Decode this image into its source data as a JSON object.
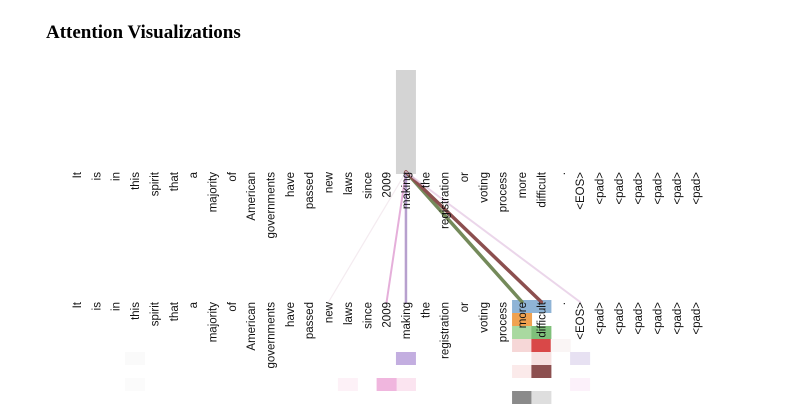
{
  "figure": {
    "title": "Attention Visualizations"
  },
  "tokens": [
    "It",
    "is",
    "in",
    "this",
    "spirit",
    "that",
    "a",
    "majority",
    "of",
    "American",
    "governments",
    "have",
    "passed",
    "new",
    "laws",
    "since",
    "2009",
    "making",
    "the",
    "registration",
    "or",
    "voting",
    "process",
    "more",
    "difficult",
    ".",
    "<EOS>",
    "<pad>",
    "<pad>",
    "<pad>",
    "<pad>",
    "<pad>",
    "<pad>"
  ],
  "query": {
    "index": 17,
    "token": "making",
    "highlight_color": "#d4d4d4"
  },
  "attention_links": [
    {
      "to": 13,
      "color": "#ead7e2",
      "opacity": 0.5,
      "width": 1.2
    },
    {
      "to": 16,
      "color": "#e2a6d6",
      "opacity": 0.9,
      "width": 2
    },
    {
      "to": 17,
      "color": "#b39bcb",
      "opacity": 0.95,
      "width": 2.5
    },
    {
      "to": 23,
      "color": "#748a5a",
      "opacity": 1.0,
      "width": 3.5
    },
    {
      "to": 24,
      "color": "#8c4f4f",
      "opacity": 1.0,
      "width": 3.5
    },
    {
      "to": 26,
      "color": "#e7cfe6",
      "opacity": 0.85,
      "width": 2
    }
  ],
  "head_blocks": [
    {
      "col": 23,
      "row": 0,
      "color": "#8fb4d6"
    },
    {
      "col": 23,
      "row": 1,
      "color": "#f0a250"
    },
    {
      "col": 23,
      "row": 2,
      "color": "#a9d9a0"
    },
    {
      "col": 23,
      "row": 3,
      "color": "#f6d7d7"
    },
    {
      "col": 23,
      "row": 5,
      "color": "#fbeaea"
    },
    {
      "col": 23,
      "row": 7,
      "color": "#8a8a8a"
    },
    {
      "col": 24,
      "row": 0,
      "color": "#8fb4d6"
    },
    {
      "col": 24,
      "row": 2,
      "color": "#7fc07a"
    },
    {
      "col": 24,
      "row": 3,
      "color": "#d94848"
    },
    {
      "col": 24,
      "row": 4,
      "color": "#f6e0e0"
    },
    {
      "col": 24,
      "row": 5,
      "color": "#8c4f4f"
    },
    {
      "col": 24,
      "row": 7,
      "color": "#dedede"
    },
    {
      "col": 17,
      "row": 4,
      "color": "#c3aee0"
    },
    {
      "col": 17,
      "row": 6,
      "color": "#fbe4f0"
    },
    {
      "col": 16,
      "row": 6,
      "color": "#f0b6de"
    },
    {
      "col": 14,
      "row": 6,
      "color": "#fdf1f7"
    },
    {
      "col": 26,
      "row": 4,
      "color": "#e7e1f2"
    },
    {
      "col": 26,
      "row": 6,
      "color": "#fcf1fa"
    },
    {
      "col": 3,
      "row": 4,
      "color": "#fafafa"
    },
    {
      "col": 3,
      "row": 6,
      "color": "#fbfbfb"
    },
    {
      "col": 25,
      "row": 3,
      "color": "#faf5f5"
    }
  ]
}
